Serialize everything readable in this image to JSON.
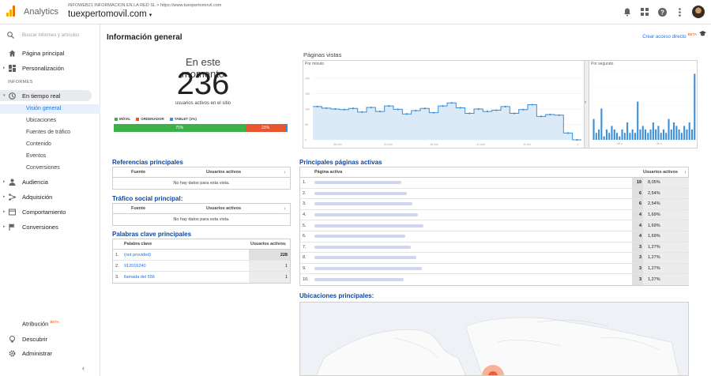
{
  "header": {
    "app_name": "Analytics",
    "account_line": "INFOWEB21 INFORMACION EN LA RED SL  >  https://www.tuexpertomovil.com",
    "property": "tuexpertomovil.com",
    "caret": "▾"
  },
  "sidebar": {
    "search_placeholder": "Buscar informes y artículos",
    "home": "Página principal",
    "custom": "Personalización",
    "reports_label": "INFORMES",
    "realtime": "En tiempo real",
    "realtime_sub": [
      "Visión general",
      "Ubicaciones",
      "Fuentes de tráfico",
      "Contenido",
      "Eventos",
      "Conversiones"
    ],
    "audience": "Audiencia",
    "acquisition": "Adquisición",
    "behavior": "Comportamiento",
    "conversions": "Conversiones",
    "attribution": "Atribución",
    "beta": "BETA",
    "discover": "Descubrir",
    "admin": "Administrar",
    "collapse": "‹"
  },
  "main": {
    "title": "Información general",
    "shortcut": "Crear acceso directo",
    "shortcut_beta": "BETA",
    "now_title": "En este momento",
    "now_value": "236",
    "now_sub": "usuarios activos en el sitio",
    "legend": [
      "MÓVIL",
      "ORDENADOR",
      "TABLET (1%)"
    ],
    "device_split": [
      {
        "label": "75%",
        "value": 75,
        "color": "#3eb049"
      },
      {
        "label": "23%",
        "value": 23,
        "color": "#e8552f"
      },
      {
        "label": "",
        "value": 1,
        "color": "#3b8fd6"
      }
    ]
  },
  "pageviews": {
    "title": "Páginas vistas",
    "per_minute": "Por minuto",
    "per_second": "Por segundo",
    "minute_ticks": [
      "-26 min",
      "-21 min",
      "-16 min",
      "-11 min",
      "-6 min",
      "-1"
    ],
    "second_ticks": [
      "-45 s",
      "-30 s"
    ],
    "y_ticks": [
      "200",
      "150",
      "100",
      "50",
      "0"
    ],
    "y_ticks_sec": [
      "20",
      "15",
      "10",
      "5",
      "0"
    ]
  },
  "chart_data": [
    {
      "type": "area",
      "title": "Por minuto",
      "ylim": [
        0,
        200
      ],
      "x": [
        "-30",
        "-29",
        "-28",
        "-27",
        "-26",
        "-25",
        "-24",
        "-23",
        "-22",
        "-21",
        "-20",
        "-19",
        "-18",
        "-17",
        "-16",
        "-15",
        "-14",
        "-13",
        "-12",
        "-11",
        "-10",
        "-9",
        "-8",
        "-7",
        "-6",
        "-5",
        "-4",
        "-3",
        "-2",
        "-1"
      ],
      "values": [
        108,
        103,
        100,
        98,
        102,
        90,
        105,
        92,
        110,
        99,
        84,
        95,
        102,
        88,
        110,
        120,
        104,
        86,
        100,
        92,
        96,
        108,
        86,
        98,
        114,
        76,
        82,
        80,
        22,
        0
      ]
    },
    {
      "type": "bar",
      "title": "Por segundo",
      "ylim": [
        0,
        20
      ],
      "values": [
        6,
        2,
        3,
        9,
        1,
        3,
        2,
        4,
        3,
        2,
        1,
        3,
        2,
        5,
        2,
        3,
        2,
        11,
        3,
        4,
        3,
        2,
        3,
        5,
        3,
        4,
        2,
        3,
        2,
        6,
        3,
        5,
        4,
        3,
        2,
        4,
        3,
        5,
        3,
        19
      ]
    }
  ],
  "referrers": {
    "title": "Referencias principales",
    "col_source": "Fuente",
    "col_active": "Usuarios activos",
    "empty": "No hay datos para esta vista."
  },
  "social": {
    "title": "Tráfico social principal:",
    "col_source": "Fuente",
    "col_active": "Usuarios activos",
    "empty": "No hay datos para esta vista."
  },
  "keywords": {
    "title": "Palabras clave principales",
    "col_keyword": "Palabra clave",
    "col_active": "Usuarios activos",
    "rows": [
      {
        "n": "1.",
        "keyword": "(not provided)",
        "value": "228"
      },
      {
        "n": "2.",
        "keyword": "912016240",
        "value": "1"
      },
      {
        "n": "3.",
        "keyword": "llamada del 556",
        "value": "1"
      }
    ]
  },
  "active_pages": {
    "title": "Principales páginas activas",
    "col_page": "Página activa",
    "col_active": "Usuarios activos",
    "rows": [
      {
        "n": "1.",
        "value": "19",
        "pct": "8,05%"
      },
      {
        "n": "2.",
        "value": "6",
        "pct": "2,54%"
      },
      {
        "n": "3.",
        "value": "6",
        "pct": "2,54%"
      },
      {
        "n": "4.",
        "value": "4",
        "pct": "1,69%"
      },
      {
        "n": "5.",
        "value": "4",
        "pct": "1,69%"
      },
      {
        "n": "6.",
        "value": "4",
        "pct": "1,69%"
      },
      {
        "n": "7.",
        "value": "3",
        "pct": "1,27%"
      },
      {
        "n": "8.",
        "value": "3",
        "pct": "1,27%"
      },
      {
        "n": "9.",
        "value": "3",
        "pct": "1,27%"
      },
      {
        "n": "10.",
        "value": "3",
        "pct": "1,27%"
      }
    ]
  },
  "locations": {
    "title": "Ubicaciones principales:"
  },
  "colors": {
    "accent": "#1a73e8",
    "title_blue": "#0d47a1",
    "chart_line": "#3b8fd6",
    "chart_fill": "#dce9f6"
  }
}
